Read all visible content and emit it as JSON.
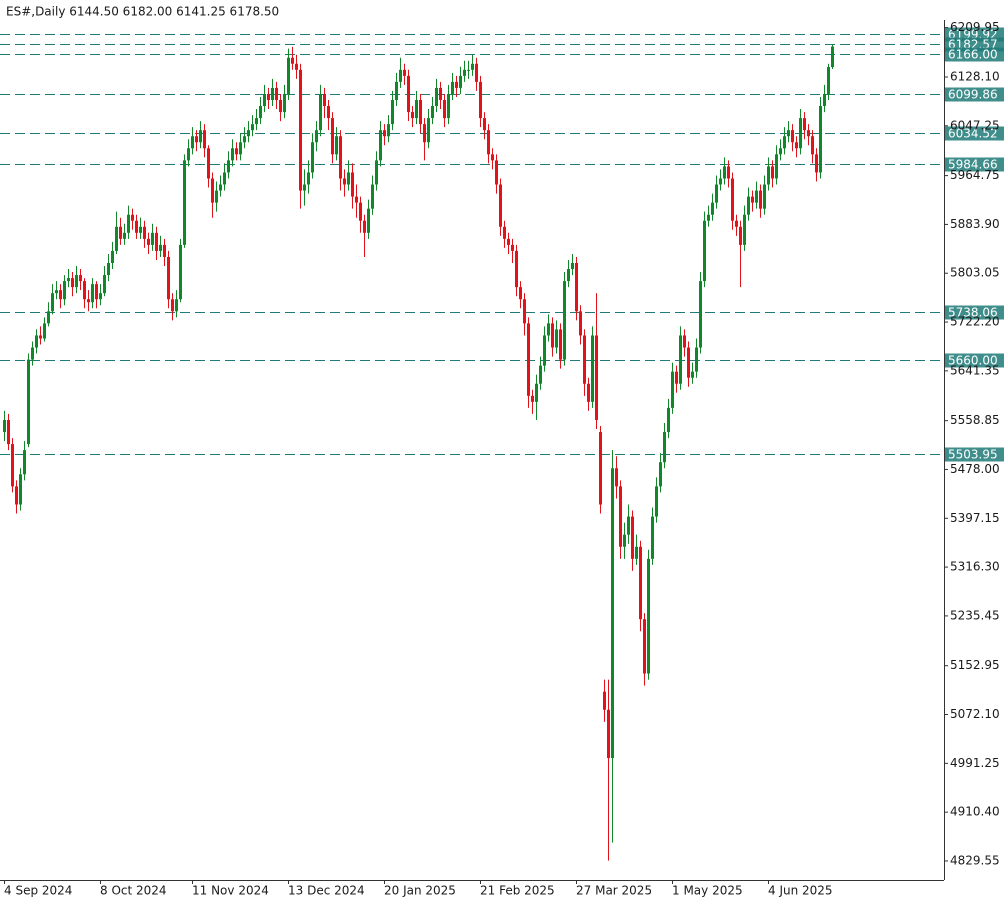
{
  "chart_data": {
    "type": "candlestick",
    "title": "ES#,Daily  6144.50 6182.00 6141.25 6178.50",
    "up_color": "#12862b",
    "down_color": "#e0131a",
    "level_color": "#1f7a78",
    "ylim": [
      4798,
      6222.5
    ],
    "yticks": [
      6209.95,
      {
        "value": 6128.1,
        "label": "6128.10"
      },
      6047.25,
      5964.75,
      {
        "value": 5883.9,
        "label": "5883.90"
      },
      5803.05,
      {
        "value": 5722.2,
        "label": "5722.20"
      },
      5641.35,
      5558.85,
      {
        "value": 5478,
        "label": "5478.00"
      },
      5397.15,
      {
        "value": 5316.3,
        "label": "5316.30"
      },
      5235.45,
      5152.95,
      {
        "value": 5072.1,
        "label": "5072.10"
      },
      4991.25,
      {
        "value": 4910.4,
        "label": "4910.40"
      },
      4829.55
    ],
    "levels": [
      6199.92,
      6182.57,
      {
        "value": 6166,
        "label": "6166.00"
      },
      6099.86,
      6034.52,
      5984.66,
      5738.06,
      {
        "value": 5660,
        "label": "5660.00"
      },
      5503.95
    ],
    "categories": [
      "4 Sep 2024",
      null,
      null,
      null,
      null,
      null,
      null,
      null,
      null,
      null,
      null,
      null,
      null,
      null,
      null,
      null,
      null,
      null,
      null,
      null,
      null,
      null,
      null,
      null,
      "8 Oct 2024",
      null,
      null,
      null,
      null,
      null,
      null,
      null,
      null,
      null,
      null,
      null,
      null,
      null,
      null,
      null,
      null,
      null,
      null,
      null,
      null,
      null,
      null,
      "11 Nov 2024",
      null,
      null,
      null,
      null,
      null,
      null,
      null,
      null,
      null,
      null,
      null,
      null,
      null,
      null,
      null,
      null,
      null,
      null,
      null,
      null,
      null,
      null,
      null,
      "13 Dec 2024",
      null,
      null,
      null,
      null,
      null,
      null,
      null,
      null,
      null,
      null,
      null,
      null,
      null,
      null,
      null,
      null,
      null,
      null,
      null,
      null,
      null,
      null,
      null,
      "20 Jan 2025",
      null,
      null,
      null,
      null,
      null,
      null,
      null,
      null,
      null,
      null,
      null,
      null,
      null,
      null,
      null,
      null,
      null,
      null,
      null,
      null,
      null,
      null,
      null,
      "21 Feb 2025",
      null,
      null,
      null,
      null,
      null,
      null,
      null,
      null,
      null,
      null,
      null,
      null,
      null,
      null,
      null,
      null,
      null,
      null,
      null,
      null,
      null,
      null,
      null,
      "27 Mar 2025",
      null,
      null,
      null,
      null,
      null,
      null,
      null,
      null,
      null,
      null,
      null,
      null,
      null,
      null,
      null,
      null,
      null,
      null,
      null,
      null,
      null,
      null,
      null,
      "1 May 2025",
      null,
      null,
      null,
      null,
      null,
      null,
      null,
      null,
      null,
      null,
      null,
      null,
      null,
      null,
      null,
      null,
      null,
      null,
      null,
      null,
      null,
      null,
      null,
      "4 Jun 2025",
      null,
      null,
      null,
      null,
      null,
      null,
      null,
      null,
      null,
      null,
      null,
      null,
      null,
      null,
      null,
      null
    ],
    "ohlc": [
      [
        5540,
        5575,
        5525,
        5560
      ],
      [
        5560,
        5570,
        5510,
        5520
      ],
      [
        5520,
        5530,
        5440,
        5450
      ],
      [
        5450,
        5460,
        5405,
        5420
      ],
      [
        5420,
        5480,
        5410,
        5470
      ],
      [
        5470,
        5525,
        5460,
        5510
      ],
      [
        5520,
        5670,
        5515,
        5660
      ],
      [
        5660,
        5690,
        5650,
        5680
      ],
      [
        5680,
        5710,
        5670,
        5700
      ],
      [
        5700,
        5715,
        5685,
        5695
      ],
      [
        5695,
        5730,
        5690,
        5720
      ],
      [
        5720,
        5755,
        5715,
        5740
      ],
      [
        5740,
        5785,
        5735,
        5770
      ],
      [
        5770,
        5790,
        5760,
        5775
      ],
      [
        5775,
        5785,
        5745,
        5760
      ],
      [
        5760,
        5800,
        5750,
        5790
      ],
      [
        5790,
        5810,
        5780,
        5795
      ],
      [
        5795,
        5805,
        5765,
        5780
      ],
      [
        5780,
        5815,
        5770,
        5800
      ],
      [
        5800,
        5810,
        5775,
        5790
      ],
      [
        5790,
        5795,
        5745,
        5760
      ],
      [
        5760,
        5775,
        5740,
        5755
      ],
      [
        5755,
        5795,
        5745,
        5785
      ],
      [
        5785,
        5790,
        5745,
        5760
      ],
      [
        5760,
        5785,
        5750,
        5770
      ],
      [
        5770,
        5815,
        5765,
        5800
      ],
      [
        5800,
        5835,
        5790,
        5820
      ],
      [
        5820,
        5855,
        5810,
        5840
      ],
      [
        5840,
        5905,
        5835,
        5880
      ],
      [
        5880,
        5895,
        5850,
        5860
      ],
      [
        5860,
        5885,
        5850,
        5870
      ],
      [
        5870,
        5915,
        5860,
        5900
      ],
      [
        5900,
        5910,
        5875,
        5890
      ],
      [
        5890,
        5900,
        5860,
        5870
      ],
      [
        5870,
        5895,
        5860,
        5880
      ],
      [
        5880,
        5890,
        5845,
        5860
      ],
      [
        5860,
        5870,
        5835,
        5850
      ],
      [
        5850,
        5885,
        5840,
        5870
      ],
      [
        5870,
        5880,
        5825,
        5840
      ],
      [
        5840,
        5865,
        5830,
        5850
      ],
      [
        5850,
        5860,
        5815,
        5830
      ],
      [
        5830,
        5840,
        5745,
        5760
      ],
      [
        5760,
        5770,
        5725,
        5740
      ],
      [
        5740,
        5775,
        5730,
        5760
      ],
      [
        5760,
        5860,
        5755,
        5850
      ],
      [
        5850,
        6000,
        5845,
        5990
      ],
      [
        5990,
        6025,
        5980,
        6010
      ],
      [
        6010,
        6045,
        6000,
        6030
      ],
      [
        6030,
        6040,
        6005,
        6020
      ],
      [
        6020,
        6055,
        6010,
        6040
      ],
      [
        6040,
        6050,
        5995,
        6010
      ],
      [
        6010,
        6015,
        5945,
        5960
      ],
      [
        5960,
        5970,
        5895,
        5920
      ],
      [
        5920,
        5955,
        5905,
        5940
      ],
      [
        5940,
        5965,
        5930,
        5950
      ],
      [
        5950,
        5985,
        5940,
        5970
      ],
      [
        5970,
        6005,
        5960,
        5990
      ],
      [
        5990,
        6025,
        5980,
        6010
      ],
      [
        6010,
        6020,
        5990,
        6000
      ],
      [
        6000,
        6035,
        5990,
        6020
      ],
      [
        6020,
        6045,
        6010,
        6030
      ],
      [
        6030,
        6055,
        6020,
        6040
      ],
      [
        6040,
        6065,
        6030,
        6050
      ],
      [
        6050,
        6075,
        6040,
        6060
      ],
      [
        6060,
        6095,
        6050,
        6080
      ],
      [
        6080,
        6115,
        6070,
        6100
      ],
      [
        6100,
        6110,
        6075,
        6090
      ],
      [
        6090,
        6125,
        6080,
        6110
      ],
      [
        6110,
        6120,
        6075,
        6090
      ],
      [
        6090,
        6100,
        6055,
        6070
      ],
      [
        6070,
        6115,
        6060,
        6100
      ],
      [
        6100,
        6175,
        6090,
        6160
      ],
      [
        6160,
        6178,
        6140,
        6150
      ],
      [
        6150,
        6165,
        6125,
        6140
      ],
      [
        6140,
        6150,
        5910,
        5940
      ],
      [
        5940,
        5975,
        5915,
        5950
      ],
      [
        5950,
        5990,
        5935,
        5970
      ],
      [
        5970,
        6035,
        5960,
        6020
      ],
      [
        6020,
        6055,
        6005,
        6040
      ],
      [
        6040,
        6115,
        6030,
        6100
      ],
      [
        6100,
        6110,
        6060,
        6080
      ],
      [
        6080,
        6090,
        6040,
        6060
      ],
      [
        6060,
        6070,
        5985,
        6000
      ],
      [
        6000,
        6045,
        5990,
        6030
      ],
      [
        6030,
        6040,
        5940,
        5960
      ],
      [
        5960,
        5975,
        5930,
        5950
      ],
      [
        5950,
        5990,
        5940,
        5970
      ],
      [
        5970,
        5985,
        5910,
        5930
      ],
      [
        5930,
        5950,
        5895,
        5920
      ],
      [
        5920,
        5930,
        5870,
        5890
      ],
      [
        5890,
        5900,
        5830,
        5870
      ],
      [
        5870,
        5925,
        5860,
        5910
      ],
      [
        5910,
        5965,
        5900,
        5950
      ],
      [
        5950,
        6005,
        5940,
        5990
      ],
      [
        5990,
        6055,
        5980,
        6040
      ],
      [
        6040,
        6050,
        6015,
        6030
      ],
      [
        6030,
        6065,
        6020,
        6050
      ],
      [
        6050,
        6105,
        6040,
        6090
      ],
      [
        6090,
        6135,
        6080,
        6120
      ],
      [
        6120,
        6160,
        6110,
        6140
      ],
      [
        6140,
        6150,
        6115,
        6130
      ],
      [
        6130,
        6140,
        6055,
        6070
      ],
      [
        6070,
        6080,
        6045,
        6060
      ],
      [
        6060,
        6105,
        6050,
        6090
      ],
      [
        6090,
        6100,
        6035,
        6050
      ],
      [
        6050,
        6060,
        5990,
        6020
      ],
      [
        6020,
        6075,
        6010,
        6060
      ],
      [
        6060,
        6095,
        6050,
        6080
      ],
      [
        6080,
        6125,
        6070,
        6110
      ],
      [
        6110,
        6120,
        6075,
        6090
      ],
      [
        6090,
        6100,
        6045,
        6060
      ],
      [
        6060,
        6115,
        6050,
        6100
      ],
      [
        6100,
        6135,
        6090,
        6120
      ],
      [
        6120,
        6130,
        6095,
        6110
      ],
      [
        6110,
        6145,
        6100,
        6130
      ],
      [
        6130,
        6155,
        6120,
        6140
      ],
      [
        6140,
        6155,
        6125,
        6140
      ],
      [
        6140,
        6165,
        6130,
        6150
      ],
      [
        6150,
        6160,
        6105,
        6120
      ],
      [
        6120,
        6130,
        6045,
        6060
      ],
      [
        6060,
        6070,
        6025,
        6040
      ],
      [
        6040,
        6050,
        5985,
        6000
      ],
      [
        6000,
        6010,
        5975,
        5990
      ],
      [
        5990,
        6000,
        5935,
        5950
      ],
      [
        5950,
        5960,
        5865,
        5880
      ],
      [
        5880,
        5890,
        5845,
        5860
      ],
      [
        5860,
        5870,
        5835,
        5850
      ],
      [
        5850,
        5860,
        5820,
        5840
      ],
      [
        5840,
        5850,
        5765,
        5780
      ],
      [
        5780,
        5790,
        5745,
        5760
      ],
      [
        5760,
        5770,
        5700,
        5720
      ],
      [
        5720,
        5730,
        5580,
        5600
      ],
      [
        5600,
        5610,
        5570,
        5590
      ],
      [
        5590,
        5635,
        5560,
        5620
      ],
      [
        5620,
        5665,
        5610,
        5650
      ],
      [
        5650,
        5715,
        5640,
        5700
      ],
      [
        5700,
        5735,
        5690,
        5720
      ],
      [
        5720,
        5730,
        5665,
        5680
      ],
      [
        5680,
        5725,
        5670,
        5710
      ],
      [
        5710,
        5720,
        5645,
        5660
      ],
      [
        5660,
        5805,
        5650,
        5790
      ],
      [
        5790,
        5825,
        5780,
        5810
      ],
      [
        5810,
        5835,
        5800,
        5820
      ],
      [
        5820,
        5830,
        5725,
        5740
      ],
      [
        5740,
        5750,
        5685,
        5700
      ],
      [
        5700,
        5710,
        5600,
        5620
      ],
      [
        5620,
        5630,
        5575,
        5590
      ],
      [
        5590,
        5715,
        5580,
        5700
      ],
      [
        5700,
        5770,
        5545,
        5560
      ],
      [
        5540,
        5550,
        5405,
        5420
      ],
      [
        5110,
        5130,
        5060,
        5080
      ],
      [
        5080,
        5130,
        4830,
        5000
      ],
      [
        5000,
        5510,
        4860,
        5480
      ],
      [
        5480,
        5500,
        5430,
        5450
      ],
      [
        5450,
        5460,
        5330,
        5350
      ],
      [
        5350,
        5390,
        5330,
        5370
      ],
      [
        5370,
        5420,
        5355,
        5400
      ],
      [
        5400,
        5410,
        5310,
        5330
      ],
      [
        5330,
        5370,
        5320,
        5350
      ],
      [
        5350,
        5360,
        5210,
        5230
      ],
      [
        5230,
        5240,
        5120,
        5140
      ],
      [
        5140,
        5345,
        5130,
        5330
      ],
      [
        5330,
        5415,
        5320,
        5400
      ],
      [
        5400,
        5465,
        5390,
        5450
      ],
      [
        5450,
        5505,
        5440,
        5490
      ],
      [
        5490,
        5555,
        5480,
        5540
      ],
      [
        5540,
        5595,
        5530,
        5580
      ],
      [
        5580,
        5655,
        5570,
        5640
      ],
      [
        5640,
        5650,
        5605,
        5620
      ],
      [
        5620,
        5715,
        5610,
        5700
      ],
      [
        5700,
        5710,
        5665,
        5680
      ],
      [
        5680,
        5690,
        5615,
        5630
      ],
      [
        5630,
        5655,
        5620,
        5640
      ],
      [
        5640,
        5695,
        5630,
        5680
      ],
      [
        5680,
        5805,
        5670,
        5790
      ],
      [
        5790,
        5905,
        5780,
        5890
      ],
      [
        5890,
        5915,
        5880,
        5900
      ],
      [
        5900,
        5935,
        5890,
        5920
      ],
      [
        5920,
        5965,
        5910,
        5950
      ],
      [
        5950,
        5975,
        5940,
        5960
      ],
      [
        5960,
        5995,
        5950,
        5980
      ],
      [
        5980,
        5990,
        5945,
        5960
      ],
      [
        5960,
        5970,
        5875,
        5890
      ],
      [
        5890,
        5900,
        5865,
        5880
      ],
      [
        5880,
        5890,
        5780,
        5850
      ],
      [
        5850,
        5915,
        5840,
        5900
      ],
      [
        5900,
        5945,
        5890,
        5930
      ],
      [
        5930,
        5940,
        5905,
        5920
      ],
      [
        5920,
        5955,
        5910,
        5940
      ],
      [
        5940,
        5950,
        5895,
        5910
      ],
      [
        5910,
        5965,
        5900,
        5950
      ],
      [
        5950,
        5995,
        5940,
        5980
      ],
      [
        5980,
        5990,
        5945,
        5960
      ],
      [
        5960,
        6015,
        5950,
        6000
      ],
      [
        6000,
        6025,
        5990,
        6010
      ],
      [
        6010,
        6045,
        6000,
        6030
      ],
      [
        6030,
        6055,
        6020,
        6040
      ],
      [
        6040,
        6050,
        6005,
        6020
      ],
      [
        6020,
        6030,
        5995,
        6010
      ],
      [
        6010,
        6075,
        6000,
        6060
      ],
      [
        6060,
        6070,
        6025,
        6040
      ],
      [
        6040,
        6050,
        6015,
        6030
      ],
      [
        6030,
        6040,
        5985,
        6000
      ],
      [
        6000,
        6010,
        5955,
        5970
      ],
      [
        5970,
        6095,
        5960,
        6080
      ],
      [
        6080,
        6115,
        6070,
        6100
      ],
      [
        6100,
        6150,
        6090,
        6144.5
      ],
      [
        6144.5,
        6182,
        6141.25,
        6178.5
      ]
    ]
  }
}
